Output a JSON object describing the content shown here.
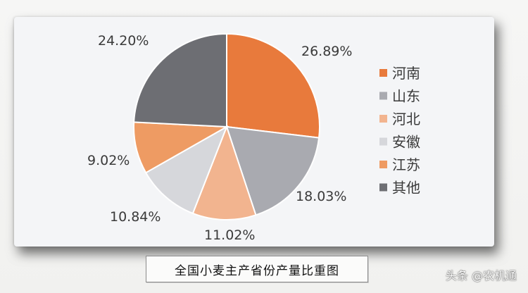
{
  "chart_data": {
    "type": "pie",
    "title": "全国小麦主产省份产量比重图",
    "slices": [
      {
        "name": "河南",
        "value": 26.89,
        "label": "26.89%",
        "color": "#e87a3c"
      },
      {
        "name": "山东",
        "value": 18.03,
        "label": "18.03%",
        "color": "#a9aab0"
      },
      {
        "name": "河北",
        "value": 11.02,
        "label": "11.02%",
        "color": "#f2b48f"
      },
      {
        "name": "安徽",
        "value": 10.84,
        "label": "10.84%",
        "color": "#d6d7db"
      },
      {
        "name": "江苏",
        "value": 9.02,
        "label": "9.02%",
        "color": "#ee9b63"
      },
      {
        "name": "其他",
        "value": 24.2,
        "label": "24.20%",
        "color": "#6d6e73"
      }
    ],
    "legend_position": "right"
  },
  "caption": "全国小麦主产省份产量比重图",
  "watermark": "头条 @农机通"
}
